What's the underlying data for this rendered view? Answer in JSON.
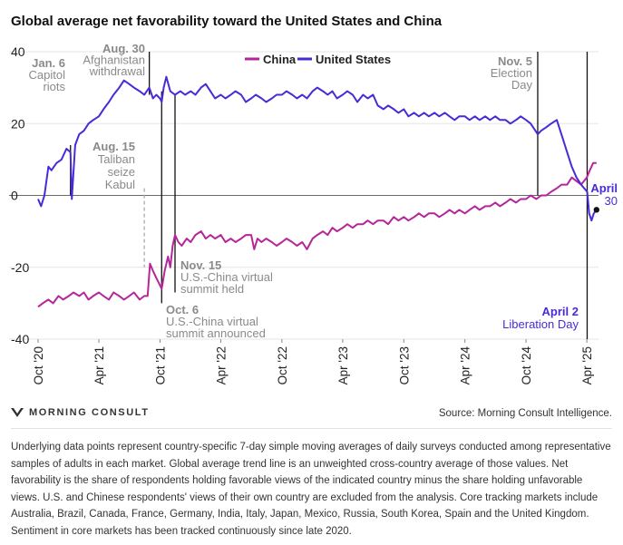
{
  "title": "Global average net favorability toward the United States and China",
  "source": "Source: Morning Consult Intelligence.",
  "logo_text": "MORNING CONSULT",
  "footnote": "Underlying data points represent country-specific 7-day simple moving averages of daily surveys conducted among representative samples of adults in each market. Global average trend line is an unweighted cross-country average of those values. Net favorability is the share of respondents holding favorable views of the indicated country minus the share holding unfavorable views. U.S. and Chinese respondents' views of their own country are excluded from the analysis. Core tracking markets include Australia, Brazil, Canada, France, Germany, India, Italy, Japan, Mexico, Russia, South Korea, Spain and the United Kingdom. Sentiment in core markets has been tracked continuously since late 2020.",
  "colors": {
    "china": "#b5269a",
    "us": "#4a2ad6",
    "grid": "#e6e6e6",
    "zero": "#6a6a6a",
    "annotation": "#8a8a8a",
    "event_line": "#111111"
  },
  "chart_data": {
    "type": "line",
    "title": "Global average net favorability toward the United States and China",
    "xlabel": "",
    "ylabel": "",
    "xlim": [
      "2020-10-01",
      "2025-05-06"
    ],
    "ylim": [
      -40,
      40
    ],
    "y_ticks": [
      -40,
      -20,
      0,
      20,
      40
    ],
    "x_ticks": [
      {
        "date": "2020-10-01",
        "label": "Oct '20"
      },
      {
        "date": "2021-04-01",
        "label": "Apr '21"
      },
      {
        "date": "2021-10-01",
        "label": "Oct '21"
      },
      {
        "date": "2022-04-01",
        "label": "Apr '22"
      },
      {
        "date": "2022-10-01",
        "label": "Oct '22"
      },
      {
        "date": "2023-04-01",
        "label": "Apr '23"
      },
      {
        "date": "2023-10-01",
        "label": "Oct '23"
      },
      {
        "date": "2024-04-01",
        "label": "Apr '24"
      },
      {
        "date": "2024-10-01",
        "label": "Oct '24"
      },
      {
        "date": "2025-04-01",
        "label": "Apr '25"
      }
    ],
    "legend": {
      "position": "top-center"
    },
    "series": [
      {
        "name": "China",
        "color": "#b5269a",
        "points": [
          [
            "2020-10-01",
            -31
          ],
          [
            "2020-10-15",
            -30
          ],
          [
            "2020-11-01",
            -29
          ],
          [
            "2020-11-15",
            -30
          ],
          [
            "2020-12-01",
            -28
          ],
          [
            "2020-12-15",
            -29
          ],
          [
            "2021-01-01",
            -28
          ],
          [
            "2021-01-15",
            -27
          ],
          [
            "2021-02-01",
            -28
          ],
          [
            "2021-02-15",
            -27
          ],
          [
            "2021-03-01",
            -29
          ],
          [
            "2021-03-15",
            -28
          ],
          [
            "2021-04-01",
            -27
          ],
          [
            "2021-04-15",
            -28
          ],
          [
            "2021-05-01",
            -29
          ],
          [
            "2021-05-15",
            -27
          ],
          [
            "2021-06-01",
            -28
          ],
          [
            "2021-06-15",
            -29
          ],
          [
            "2021-07-01",
            -28
          ],
          [
            "2021-07-15",
            -27
          ],
          [
            "2021-08-01",
            -29
          ],
          [
            "2021-08-15",
            -28
          ],
          [
            "2021-08-25",
            -28
          ],
          [
            "2021-09-01",
            -19
          ],
          [
            "2021-09-10",
            -21
          ],
          [
            "2021-09-20",
            -23
          ],
          [
            "2021-10-01",
            -25
          ],
          [
            "2021-10-06",
            -26
          ],
          [
            "2021-10-15",
            -21
          ],
          [
            "2021-10-25",
            -17
          ],
          [
            "2021-11-01",
            -20
          ],
          [
            "2021-11-08",
            -14
          ],
          [
            "2021-11-15",
            -11
          ],
          [
            "2021-11-25",
            -13
          ],
          [
            "2021-12-05",
            -14
          ],
          [
            "2021-12-20",
            -12
          ],
          [
            "2022-01-01",
            -13
          ],
          [
            "2022-01-15",
            -11
          ],
          [
            "2022-02-01",
            -10
          ],
          [
            "2022-02-15",
            -12
          ],
          [
            "2022-03-01",
            -11
          ],
          [
            "2022-03-15",
            -12
          ],
          [
            "2022-04-01",
            -11
          ],
          [
            "2022-04-15",
            -13
          ],
          [
            "2022-05-01",
            -12
          ],
          [
            "2022-05-15",
            -13
          ],
          [
            "2022-06-01",
            -12
          ],
          [
            "2022-06-15",
            -11
          ],
          [
            "2022-07-01",
            -11
          ],
          [
            "2022-07-10",
            -15
          ],
          [
            "2022-07-20",
            -12
          ],
          [
            "2022-08-01",
            -13
          ],
          [
            "2022-08-15",
            -12
          ],
          [
            "2022-09-01",
            -13
          ],
          [
            "2022-09-15",
            -14
          ],
          [
            "2022-10-01",
            -13
          ],
          [
            "2022-10-15",
            -12
          ],
          [
            "2022-11-01",
            -13
          ],
          [
            "2022-11-15",
            -14
          ],
          [
            "2022-12-01",
            -13
          ],
          [
            "2022-12-15",
            -15
          ],
          [
            "2023-01-01",
            -12
          ],
          [
            "2023-01-15",
            -11
          ],
          [
            "2023-02-01",
            -10
          ],
          [
            "2023-02-15",
            -11
          ],
          [
            "2023-03-01",
            -9
          ],
          [
            "2023-03-15",
            -10
          ],
          [
            "2023-04-01",
            -9
          ],
          [
            "2023-04-15",
            -8
          ],
          [
            "2023-05-01",
            -9
          ],
          [
            "2023-05-15",
            -8
          ],
          [
            "2023-06-01",
            -8
          ],
          [
            "2023-06-15",
            -7
          ],
          [
            "2023-07-01",
            -8
          ],
          [
            "2023-07-15",
            -7
          ],
          [
            "2023-08-01",
            -7
          ],
          [
            "2023-08-15",
            -8
          ],
          [
            "2023-09-01",
            -6
          ],
          [
            "2023-09-15",
            -7
          ],
          [
            "2023-10-01",
            -6
          ],
          [
            "2023-10-15",
            -7
          ],
          [
            "2023-11-01",
            -6
          ],
          [
            "2023-11-15",
            -5
          ],
          [
            "2023-12-01",
            -6
          ],
          [
            "2023-12-15",
            -5
          ],
          [
            "2024-01-01",
            -5
          ],
          [
            "2024-01-15",
            -6
          ],
          [
            "2024-02-01",
            -5
          ],
          [
            "2024-02-15",
            -4
          ],
          [
            "2024-03-01",
            -5
          ],
          [
            "2024-03-15",
            -4
          ],
          [
            "2024-04-01",
            -5
          ],
          [
            "2024-04-15",
            -4
          ],
          [
            "2024-05-01",
            -3
          ],
          [
            "2024-05-15",
            -4
          ],
          [
            "2024-06-01",
            -3
          ],
          [
            "2024-06-15",
            -3
          ],
          [
            "2024-07-01",
            -2
          ],
          [
            "2024-07-15",
            -3
          ],
          [
            "2024-08-01",
            -2
          ],
          [
            "2024-08-15",
            -1
          ],
          [
            "2024-09-01",
            -2
          ],
          [
            "2024-09-15",
            -1
          ],
          [
            "2024-10-01",
            -1
          ],
          [
            "2024-10-15",
            0
          ],
          [
            "2024-11-01",
            -1
          ],
          [
            "2024-11-15",
            0
          ],
          [
            "2024-12-01",
            0
          ],
          [
            "2024-12-15",
            1
          ],
          [
            "2025-01-01",
            2
          ],
          [
            "2025-01-15",
            3
          ],
          [
            "2025-02-01",
            3
          ],
          [
            "2025-02-15",
            5
          ],
          [
            "2025-03-01",
            4
          ],
          [
            "2025-03-15",
            3
          ],
          [
            "2025-04-01",
            5
          ],
          [
            "2025-04-10",
            7
          ],
          [
            "2025-04-20",
            9
          ],
          [
            "2025-04-30",
            9
          ]
        ]
      },
      {
        "name": "United States",
        "color": "#4a2ad6",
        "points": [
          [
            "2020-10-01",
            -1
          ],
          [
            "2020-10-10",
            -3
          ],
          [
            "2020-10-20",
            0
          ],
          [
            "2020-11-01",
            8
          ],
          [
            "2020-11-10",
            7
          ],
          [
            "2020-11-25",
            9
          ],
          [
            "2020-12-10",
            10
          ],
          [
            "2020-12-25",
            13
          ],
          [
            "2021-01-06",
            12
          ],
          [
            "2021-01-10",
            -1
          ],
          [
            "2021-01-20",
            14
          ],
          [
            "2021-02-01",
            17
          ],
          [
            "2021-02-15",
            18
          ],
          [
            "2021-03-01",
            20
          ],
          [
            "2021-03-15",
            21
          ],
          [
            "2021-04-01",
            22
          ],
          [
            "2021-04-15",
            24
          ],
          [
            "2021-05-01",
            26
          ],
          [
            "2021-05-15",
            28
          ],
          [
            "2021-06-01",
            30
          ],
          [
            "2021-06-15",
            32
          ],
          [
            "2021-07-01",
            31
          ],
          [
            "2021-07-15",
            30
          ],
          [
            "2021-08-01",
            29
          ],
          [
            "2021-08-15",
            28
          ],
          [
            "2021-08-30",
            30
          ],
          [
            "2021-09-10",
            27
          ],
          [
            "2021-09-20",
            28
          ],
          [
            "2021-10-01",
            27
          ],
          [
            "2021-10-06",
            26
          ],
          [
            "2021-10-12",
            30
          ],
          [
            "2021-10-20",
            33
          ],
          [
            "2021-11-01",
            29
          ],
          [
            "2021-11-15",
            28
          ],
          [
            "2021-12-01",
            29
          ],
          [
            "2021-12-15",
            28
          ],
          [
            "2022-01-01",
            29
          ],
          [
            "2022-01-15",
            28
          ],
          [
            "2022-02-01",
            30
          ],
          [
            "2022-02-15",
            31
          ],
          [
            "2022-03-01",
            29
          ],
          [
            "2022-03-15",
            27
          ],
          [
            "2022-04-01",
            28
          ],
          [
            "2022-04-15",
            27
          ],
          [
            "2022-05-01",
            28
          ],
          [
            "2022-05-15",
            29
          ],
          [
            "2022-06-01",
            28
          ],
          [
            "2022-06-15",
            26
          ],
          [
            "2022-07-01",
            27
          ],
          [
            "2022-07-15",
            28
          ],
          [
            "2022-08-01",
            27
          ],
          [
            "2022-08-15",
            26
          ],
          [
            "2022-09-01",
            27
          ],
          [
            "2022-09-15",
            28
          ],
          [
            "2022-10-01",
            28
          ],
          [
            "2022-10-15",
            29
          ],
          [
            "2022-11-01",
            28
          ],
          [
            "2022-11-15",
            27
          ],
          [
            "2022-12-01",
            28
          ],
          [
            "2022-12-15",
            27
          ],
          [
            "2023-01-01",
            29
          ],
          [
            "2023-01-15",
            30
          ],
          [
            "2023-02-01",
            29
          ],
          [
            "2023-02-15",
            28
          ],
          [
            "2023-03-01",
            29
          ],
          [
            "2023-03-15",
            27
          ],
          [
            "2023-04-01",
            28
          ],
          [
            "2023-04-15",
            29
          ],
          [
            "2023-05-01",
            28
          ],
          [
            "2023-05-15",
            26
          ],
          [
            "2023-06-01",
            28
          ],
          [
            "2023-06-15",
            27
          ],
          [
            "2023-07-01",
            28
          ],
          [
            "2023-07-15",
            25
          ],
          [
            "2023-08-01",
            24
          ],
          [
            "2023-08-15",
            25
          ],
          [
            "2023-09-01",
            24
          ],
          [
            "2023-09-15",
            23
          ],
          [
            "2023-10-01",
            24
          ],
          [
            "2023-10-15",
            22
          ],
          [
            "2023-11-01",
            23
          ],
          [
            "2023-11-15",
            22
          ],
          [
            "2023-12-01",
            23
          ],
          [
            "2023-12-15",
            22
          ],
          [
            "2024-01-01",
            23
          ],
          [
            "2024-01-15",
            22
          ],
          [
            "2024-02-01",
            23
          ],
          [
            "2024-02-15",
            22
          ],
          [
            "2024-03-01",
            21
          ],
          [
            "2024-03-15",
            22
          ],
          [
            "2024-04-01",
            22
          ],
          [
            "2024-04-15",
            21
          ],
          [
            "2024-05-01",
            22
          ],
          [
            "2024-05-15",
            21
          ],
          [
            "2024-06-01",
            22
          ],
          [
            "2024-06-15",
            21
          ],
          [
            "2024-07-01",
            22
          ],
          [
            "2024-07-15",
            21
          ],
          [
            "2024-08-01",
            21
          ],
          [
            "2024-08-15",
            20
          ],
          [
            "2024-09-01",
            21
          ],
          [
            "2024-09-15",
            22
          ],
          [
            "2024-10-01",
            21
          ],
          [
            "2024-10-15",
            20
          ],
          [
            "2024-11-05",
            17
          ],
          [
            "2024-11-15",
            18
          ],
          [
            "2024-12-01",
            19
          ],
          [
            "2024-12-15",
            20
          ],
          [
            "2025-01-01",
            21
          ],
          [
            "2025-01-15",
            17
          ],
          [
            "2025-02-01",
            12
          ],
          [
            "2025-02-15",
            8
          ],
          [
            "2025-03-01",
            5
          ],
          [
            "2025-03-15",
            3
          ],
          [
            "2025-04-02",
            1
          ],
          [
            "2025-04-08",
            -5
          ],
          [
            "2025-04-15",
            -7
          ],
          [
            "2025-04-22",
            -5
          ],
          [
            "2025-04-30",
            -4
          ]
        ]
      }
    ],
    "events": [
      {
        "date": "2021-01-06",
        "title": "Jan. 6",
        "text": [
          "Capitol",
          "riots"
        ],
        "line_from": 0,
        "line_to": 14
      },
      {
        "date": "2021-08-15",
        "title": "Aug. 15",
        "text": [
          "Taliban",
          "seize",
          "Kabul"
        ],
        "line_from": -20,
        "line_to": 2
      },
      {
        "date": "2021-08-30",
        "title": "Aug. 30",
        "text": [
          "Afghanistan",
          "withdrawal"
        ],
        "line_from": 28,
        "line_to": 40
      },
      {
        "date": "2021-10-06",
        "title": "Oct. 6",
        "text": [
          "U.S.-China virtual",
          "summit announced"
        ],
        "line_from": -30,
        "line_to": 29
      },
      {
        "date": "2021-11-15",
        "title": "Nov. 15",
        "text": [
          "U.S.-China virtual",
          "summit held"
        ],
        "line_from": -27,
        "line_to": 28
      },
      {
        "date": "2024-11-05",
        "title": "Nov. 5",
        "text": [
          "Election",
          "Day"
        ],
        "line_from": 0,
        "line_to": 40
      },
      {
        "date": "2025-04-02",
        "title": "April 2",
        "text": [
          "Liberation Day"
        ],
        "line_from": -40,
        "line_to": 40
      },
      {
        "date": "2025-04-30",
        "title": "April",
        "text": [
          "30"
        ],
        "marker_value": -4
      }
    ]
  }
}
